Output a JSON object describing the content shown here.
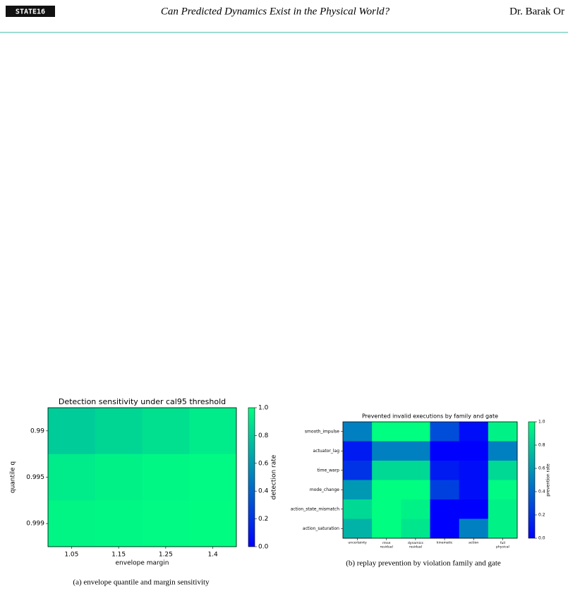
{
  "header": {
    "logo": "STATE16",
    "title": "Can Predicted Dynamics Exist in the Physical World?",
    "author": "Dr. Barak Or"
  },
  "captions": [
    "(a) envelope quantile and margin sensitivity",
    "(b) replay prevention by violation family and gate"
  ],
  "chart_data": [
    {
      "type": "heatmap",
      "title": "Detection sensitivity under cal95 threshold",
      "xlabel": "envelope margin",
      "ylabel": "quantile q",
      "colorbar_label": "detection rate",
      "x_categories": [
        "1.05",
        "1.15",
        "1.25",
        "1.4"
      ],
      "y_categories": [
        "0.99",
        "0.995",
        "0.999"
      ],
      "values": [
        [
          0.8,
          0.84,
          0.88,
          0.92
        ],
        [
          0.92,
          0.95,
          0.97,
          0.98
        ],
        [
          0.96,
          0.97,
          0.98,
          0.99
        ]
      ],
      "colormap": [
        "#0000ff",
        "#00ff80"
      ],
      "clim": [
        0,
        1
      ],
      "cticks": [
        {
          "value": 0,
          "label": "0.0"
        },
        0.2,
        0.4,
        0.6,
        0.8,
        {
          "value": 1,
          "label": "1.0"
        }
      ]
    },
    {
      "type": "heatmap",
      "title": "Prevented invalid executions by family and gate",
      "colorbar_label": "prevention rate",
      "x_categories": [
        "uncertainty",
        "rmse\nresidual",
        "dynamics\nresidual",
        "kinematic",
        "action",
        "full\nphysical"
      ],
      "y_categories": [
        "smooth_impulse",
        "actuator_lag",
        "time_warp",
        "mode_change",
        "action_state_mismatch",
        "action_saturation"
      ],
      "values": [
        [
          0.5,
          1.0,
          1.0,
          0.3,
          0.05,
          0.95
        ],
        [
          0.1,
          0.5,
          0.5,
          0.0,
          0.0,
          0.5
        ],
        [
          0.2,
          0.85,
          0.85,
          0.1,
          0.05,
          0.85
        ],
        [
          0.6,
          1.0,
          1.0,
          0.25,
          0.05,
          0.98
        ],
        [
          0.85,
          1.0,
          0.95,
          0.0,
          0.0,
          0.95
        ],
        [
          0.7,
          1.0,
          0.9,
          0.0,
          0.5,
          0.95
        ]
      ],
      "colormap": [
        "#0000ff",
        "#00ff80"
      ],
      "clim": [
        0,
        1
      ],
      "cticks": [
        {
          "value": 0,
          "label": "0.0"
        },
        0.2,
        0.4,
        0.6,
        0.8,
        {
          "value": 1,
          "label": "1.0"
        }
      ]
    }
  ]
}
